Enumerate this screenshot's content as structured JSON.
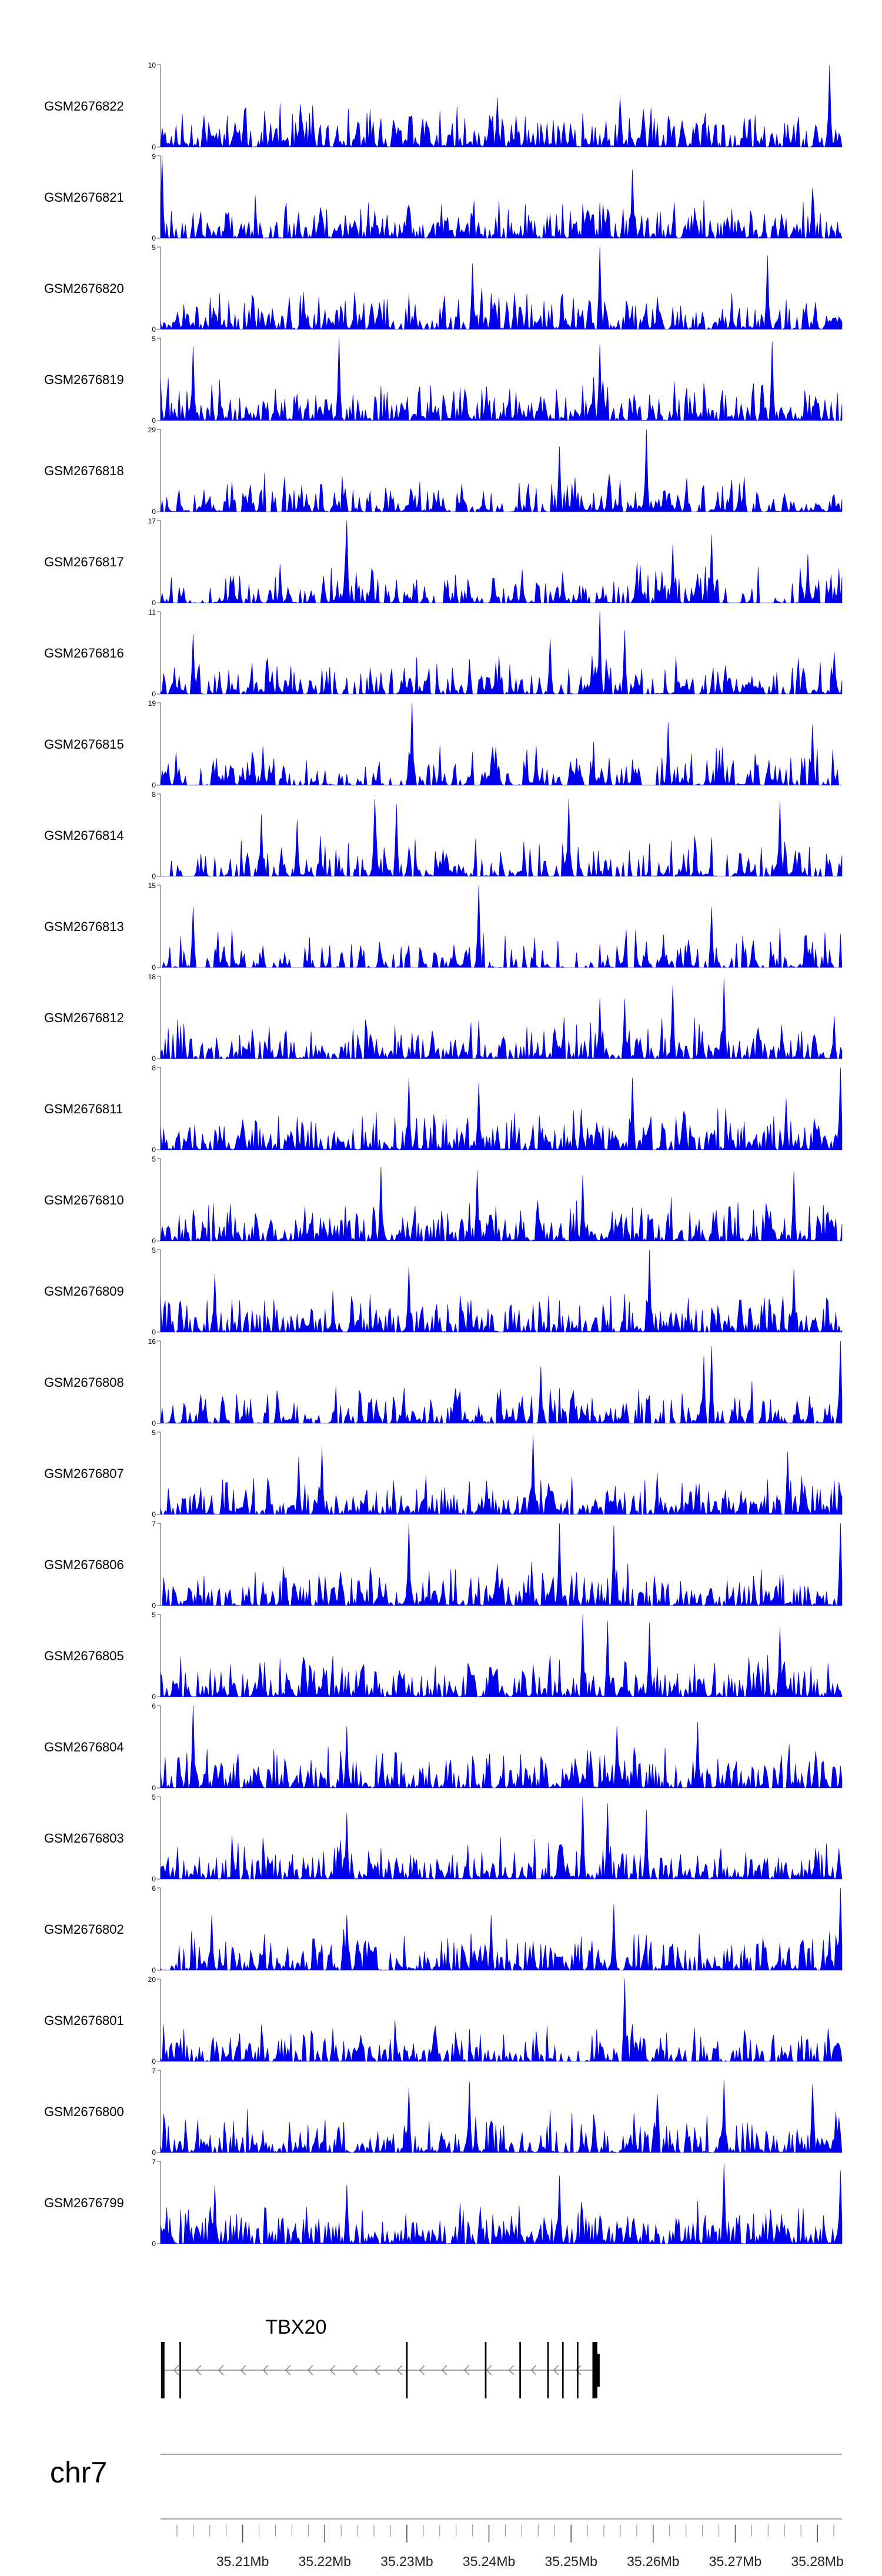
{
  "chart_data": {
    "type": "area",
    "title": "",
    "color_fill": "#0000ee",
    "color_axis": "#555555",
    "x_range": [
      35.2,
      35.283
    ],
    "tracks": [
      {
        "name": "GSM2676822",
        "ymax": 10,
        "ymin": 0,
        "seed": 11,
        "peaks": [
          [
            35.209,
            3
          ],
          [
            35.232,
            3.5
          ],
          [
            35.241,
            6
          ],
          [
            35.256,
            6
          ],
          [
            35.2815,
            10
          ]
        ],
        "sparse": 0.02
      },
      {
        "name": "GSM2676821",
        "ymax": 9,
        "ymin": 0,
        "seed": 23,
        "peaks": [
          [
            35.2002,
            9
          ],
          [
            35.226,
            3
          ],
          [
            35.2575,
            7.5
          ],
          [
            35.2795,
            5.5
          ]
        ],
        "sparse": 0.0
      },
      {
        "name": "GSM2676820",
        "ymax": 5,
        "ymin": 0,
        "seed": 37,
        "peaks": [
          [
            35.2535,
            5
          ],
          [
            35.274,
            4.5
          ],
          [
            35.238,
            4
          ]
        ],
        "sparse": 0.0
      },
      {
        "name": "GSM2676819",
        "ymax": 5,
        "ymin": 0,
        "seed": 41,
        "peaks": [
          [
            35.2039,
            4.5
          ],
          [
            35.2218,
            5
          ],
          [
            35.2745,
            4.8
          ],
          [
            35.2535,
            4.6
          ]
        ],
        "sparse": 0.0
      },
      {
        "name": "GSM2676818",
        "ymax": 29,
        "ymin": 0,
        "seed": 53,
        "peaks": [
          [
            35.2504,
            12
          ],
          [
            35.2591,
            29
          ],
          [
            35.2485,
            23
          ],
          [
            35.2705,
            10
          ]
        ],
        "sparse": 0.25
      },
      {
        "name": "GSM2676817",
        "ymax": 17,
        "ymin": 0,
        "seed": 67,
        "peaks": [
          [
            35.2227,
            17
          ],
          [
            35.2225,
            9
          ],
          [
            35.2624,
            12
          ],
          [
            35.2671,
            14
          ],
          [
            35.2788,
            10
          ]
        ],
        "sparse": 0.32
      },
      {
        "name": "GSM2676816",
        "ymax": 11,
        "ymin": 0,
        "seed": 71,
        "peaks": [
          [
            35.2039,
            8
          ],
          [
            35.2072,
            3
          ],
          [
            35.2202,
            3
          ],
          [
            35.2475,
            7.5
          ],
          [
            35.2535,
            11
          ],
          [
            35.2565,
            8.5
          ]
        ],
        "sparse": 0.38
      },
      {
        "name": "GSM2676815",
        "ymax": 19,
        "ymin": 0,
        "seed": 83,
        "peaks": [
          [
            35.2022,
            4
          ],
          [
            35.2125,
            9
          ],
          [
            35.2306,
            19
          ],
          [
            35.2457,
            9
          ],
          [
            35.2619,
            14.5
          ],
          [
            35.2795,
            14
          ]
        ],
        "sparse": 0.42
      },
      {
        "name": "GSM2676814",
        "ymax": 8,
        "ymin": 0,
        "seed": 97,
        "peaks": [
          [
            35.2123,
            6
          ],
          [
            35.2166,
            5.5
          ],
          [
            35.226,
            7.5
          ],
          [
            35.2288,
            7
          ],
          [
            35.2498,
            7.5
          ],
          [
            35.2754,
            7.2
          ]
        ],
        "sparse": 0.35
      },
      {
        "name": "GSM2676813",
        "ymax": 15,
        "ymin": 0,
        "seed": 101,
        "peaks": [
          [
            35.2039,
            11
          ],
          [
            35.2125,
            4
          ],
          [
            35.2243,
            4
          ],
          [
            35.2388,
            15
          ],
          [
            35.2612,
            6
          ],
          [
            35.2671,
            11
          ]
        ],
        "sparse": 0.48
      },
      {
        "name": "GSM2676812",
        "ymax": 18,
        "ymin": 0,
        "seed": 113,
        "peaks": [
          [
            35.2535,
            13
          ],
          [
            35.2565,
            13
          ],
          [
            35.2624,
            16
          ],
          [
            35.2686,
            17.5
          ]
        ],
        "sparse": 0.1
      },
      {
        "name": "GSM2676811",
        "ymax": 8,
        "ymin": 0,
        "seed": 127,
        "peaks": [
          [
            35.2302,
            7
          ],
          [
            35.2388,
            6.5
          ],
          [
            35.2574,
            7
          ],
          [
            35.2828,
            8
          ],
          [
            35.2762,
            5
          ]
        ],
        "sparse": 0.05
      },
      {
        "name": "GSM2676810",
        "ymax": 5,
        "ymin": 0,
        "seed": 131,
        "peaks": [
          [
            35.2268,
            4.5
          ],
          [
            35.2385,
            4.3
          ],
          [
            35.2514,
            4
          ],
          [
            35.2771,
            4.2
          ]
        ],
        "sparse": 0.03
      },
      {
        "name": "GSM2676809",
        "ymax": 5,
        "ymin": 0,
        "seed": 139,
        "peaks": [
          [
            35.2066,
            3.5
          ],
          [
            35.2302,
            4
          ],
          [
            35.2595,
            5
          ],
          [
            35.2771,
            3.8
          ]
        ],
        "sparse": 0.03
      },
      {
        "name": "GSM2676808",
        "ymax": 16,
        "ymin": 0,
        "seed": 149,
        "peaks": [
          [
            35.2464,
            11
          ],
          [
            35.2661,
            13
          ],
          [
            35.2671,
            15
          ],
          [
            35.2828,
            16
          ]
        ],
        "sparse": 0.3
      },
      {
        "name": "GSM2676807",
        "ymax": 5,
        "ymin": 0,
        "seed": 157,
        "peaks": [
          [
            35.2169,
            3.5
          ],
          [
            35.2196,
            4
          ],
          [
            35.2454,
            4.8
          ],
          [
            35.2764,
            3.8
          ]
        ],
        "sparse": 0.03
      },
      {
        "name": "GSM2676806",
        "ymax": 7,
        "ymin": 0,
        "seed": 163,
        "peaks": [
          [
            35.2302,
            7
          ],
          [
            35.2485,
            7
          ],
          [
            35.2552,
            6.8
          ],
          [
            35.2828,
            7
          ]
        ],
        "sparse": 0.08
      },
      {
        "name": "GSM2676805",
        "ymax": 5,
        "ymin": 0,
        "seed": 173,
        "peaks": [
          [
            35.2514,
            5
          ],
          [
            35.2544,
            4.6
          ],
          [
            35.2595,
            4.5
          ],
          [
            35.2754,
            4.2
          ]
        ],
        "sparse": 0.02
      },
      {
        "name": "GSM2676804",
        "ymax": 6,
        "ymin": 0,
        "seed": 181,
        "peaks": [
          [
            35.2039,
            6
          ],
          [
            35.2227,
            4.5
          ],
          [
            35.2555,
            4.5
          ],
          [
            35.2654,
            4.8
          ]
        ],
        "sparse": 0.05
      },
      {
        "name": "GSM2676803",
        "ymax": 5,
        "ymin": 0,
        "seed": 191,
        "peaks": [
          [
            35.2227,
            4
          ],
          [
            35.2514,
            5
          ],
          [
            35.2545,
            4.6
          ],
          [
            35.2591,
            4.2
          ]
        ],
        "sparse": 0.03
      },
      {
        "name": "GSM2676802",
        "ymax": 6,
        "ymin": 0,
        "seed": 199,
        "peaks": [
          [
            35.2062,
            4
          ],
          [
            35.2227,
            4
          ],
          [
            35.2402,
            4
          ],
          [
            35.2552,
            4.8
          ],
          [
            35.2828,
            6
          ]
        ],
        "sparse": 0.04
      },
      {
        "name": "GSM2676801",
        "ymax": 20,
        "ymin": 0,
        "seed": 211,
        "peaks": [
          [
            35.2565,
            20
          ],
          [
            35.2575,
            9
          ],
          [
            35.2585,
            6
          ]
        ],
        "sparse": 0.15
      },
      {
        "name": "GSM2676800",
        "ymax": 7,
        "ymin": 0,
        "seed": 223,
        "peaks": [
          [
            35.2302,
            5.5
          ],
          [
            35.2376,
            6
          ],
          [
            35.2605,
            5
          ],
          [
            35.2686,
            6.2
          ],
          [
            35.2795,
            5.8
          ]
        ],
        "sparse": 0.06
      },
      {
        "name": "GSM2676799",
        "ymax": 7,
        "ymin": 0,
        "seed": 227,
        "peaks": [
          [
            35.2066,
            5
          ],
          [
            35.2227,
            5
          ],
          [
            35.2485,
            5.8
          ],
          [
            35.2686,
            6.8
          ],
          [
            35.2828,
            6.2
          ]
        ],
        "sparse": 0.05
      }
    ],
    "gene": {
      "name": "TBX20",
      "strand": "-",
      "start": 35.2002,
      "end": 35.2532,
      "exons": [
        [
          35.2002,
          35.2004
        ],
        [
          35.2023,
          35.2025
        ],
        [
          35.2299,
          35.2301
        ],
        [
          35.2395,
          35.2397
        ],
        [
          35.2437,
          35.2439
        ],
        [
          35.2471,
          35.2473
        ],
        [
          35.2489,
          35.2491
        ],
        [
          35.2507,
          35.2509
        ],
        [
          35.2526,
          35.2532
        ]
      ]
    },
    "chromosome": "chr7",
    "x_ticks": [
      35.21,
      35.22,
      35.23,
      35.24,
      35.25,
      35.26,
      35.27,
      35.28
    ],
    "x_tick_labels": [
      "35.21Mb",
      "35.22Mb",
      "35.23Mb",
      "35.24Mb",
      "35.25Mb",
      "35.26Mb",
      "35.27Mb",
      "35.28Mb"
    ],
    "minor_tick_step": 0.002
  }
}
